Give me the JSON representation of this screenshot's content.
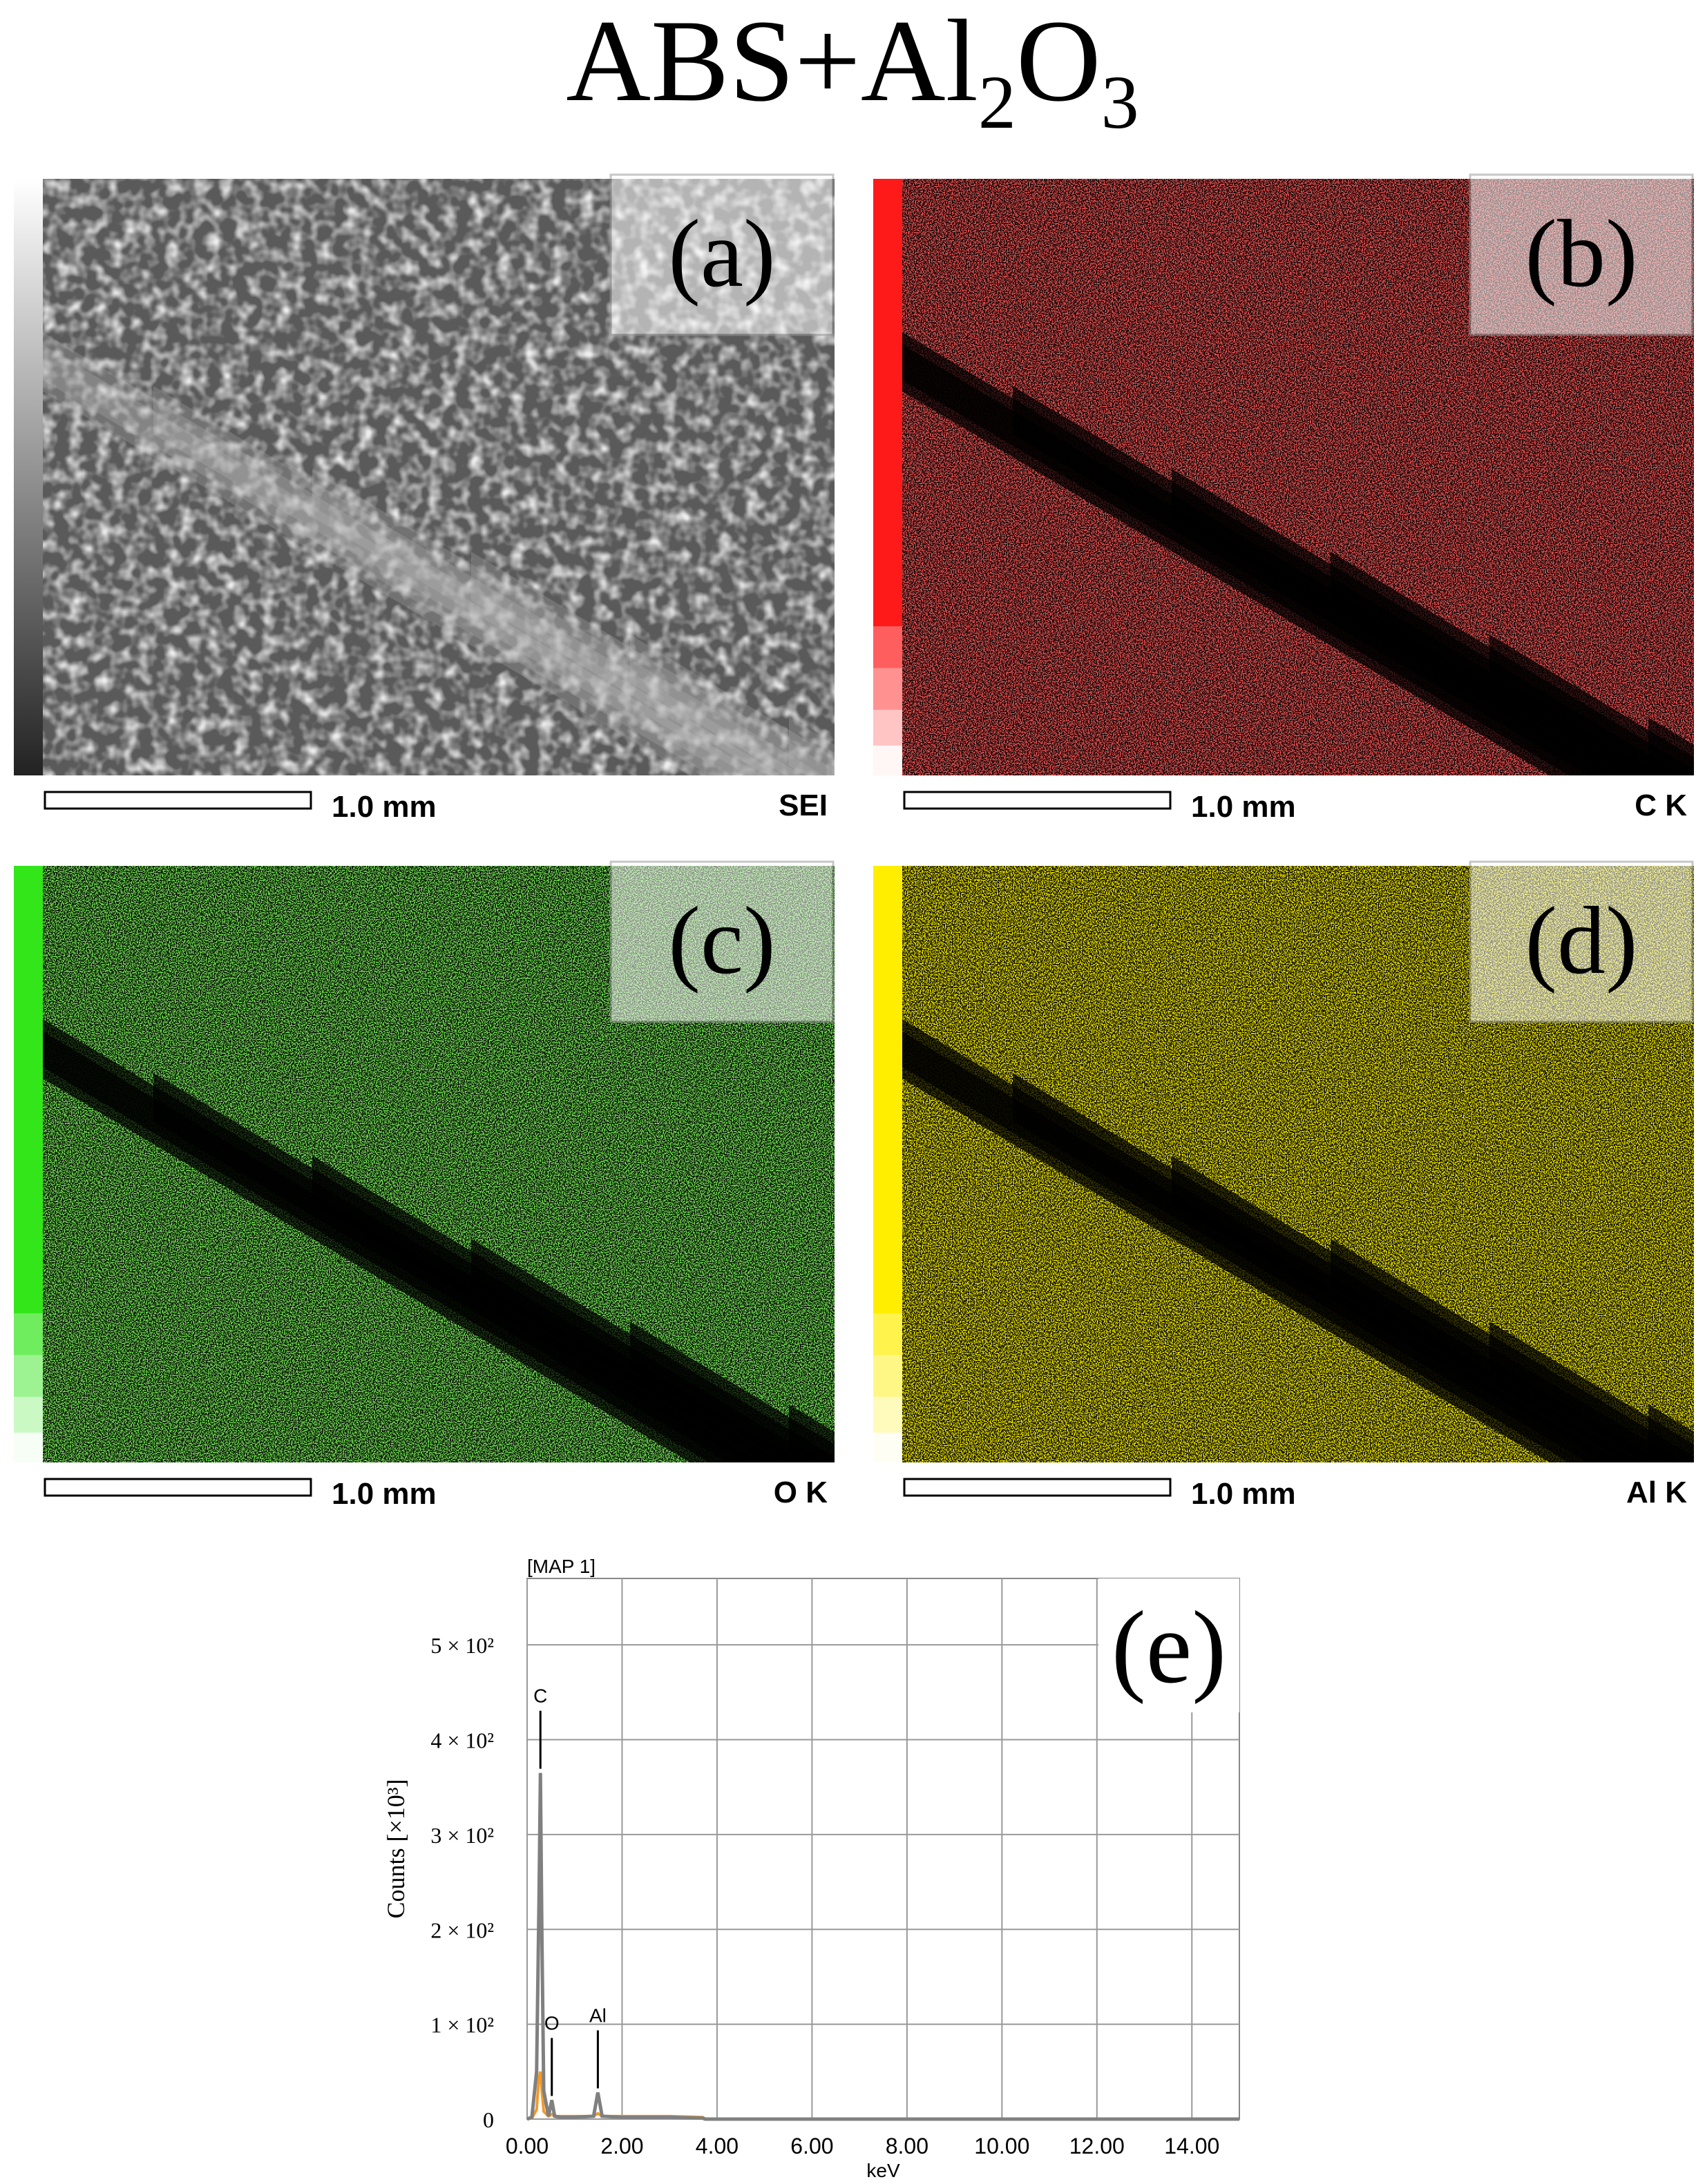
{
  "title": [
    {
      "text": "ABS+Al"
    },
    {
      "text": "2",
      "sub": true
    },
    {
      "text": "O"
    },
    {
      "text": "3",
      "sub": true
    }
  ],
  "panels": [
    {
      "label": "(a)",
      "scale": "1.0 mm",
      "channel": "SEI",
      "color": "#d8d8d8"
    },
    {
      "label": "(b)",
      "scale": "1.0 mm",
      "channel": "C K",
      "color": "#ff1a1a"
    },
    {
      "label": "(c)",
      "scale": "1.0 mm",
      "channel": "O K",
      "color": "#33e61a"
    },
    {
      "label": "(d)",
      "scale": "1.0 mm",
      "channel": "Al K",
      "color": "#ffee00"
    }
  ],
  "chart_data": {
    "type": "line",
    "subtitle": "[MAP 1]",
    "title": "(e)",
    "xlabel": "keV",
    "ylabel": "Counts [×10³]",
    "x": [
      0,
      0.1,
      0.2,
      0.25,
      0.28,
      0.31,
      0.35,
      0.45,
      0.52,
      0.58,
      0.7,
      1.0,
      1.4,
      1.49,
      1.58,
      2.0,
      3.0,
      3.7,
      3.75,
      5,
      10,
      15
    ],
    "series": [
      {
        "color": "#808080",
        "values": [
          0,
          2,
          50,
          230,
          365,
          200,
          30,
          3,
          20,
          3,
          2,
          2,
          3,
          28,
          3,
          2,
          2,
          1,
          0,
          0,
          0,
          0
        ]
      },
      {
        "color": "#f39a2b",
        "values": [
          0,
          1,
          10,
          45,
          50,
          30,
          8,
          3,
          5,
          3,
          3,
          3,
          3,
          6,
          3,
          3,
          3,
          2,
          0,
          0,
          0,
          0
        ]
      }
    ],
    "peaks": [
      {
        "text": "C",
        "x": 0.28
      },
      {
        "text": "O",
        "x": 0.52
      },
      {
        "text": "Al",
        "x": 1.49
      }
    ],
    "xlim": [
      0,
      15
    ],
    "xticks": [
      {
        "value": 0,
        "label": "0.00"
      },
      {
        "value": 2,
        "label": "2.00"
      },
      {
        "value": 4,
        "label": "4.00"
      },
      {
        "value": 6,
        "label": "6.00"
      },
      {
        "value": 8,
        "label": "8.00"
      },
      {
        "value": 10,
        "label": "10.00"
      },
      {
        "value": 12,
        "label": "12.00"
      },
      {
        "value": 14,
        "label": "14.00"
      }
    ],
    "ylim": [
      0,
      570
    ],
    "yticks": [
      0,
      {
        "value": 100,
        "label": "1 × 10²"
      },
      {
        "value": 200,
        "label": "2 × 10²"
      },
      {
        "value": 300,
        "label": "3 × 10²"
      },
      {
        "value": 400,
        "label": "4 × 10²"
      },
      {
        "value": 500,
        "label": "5 × 10²"
      }
    ],
    "grid": true
  }
}
